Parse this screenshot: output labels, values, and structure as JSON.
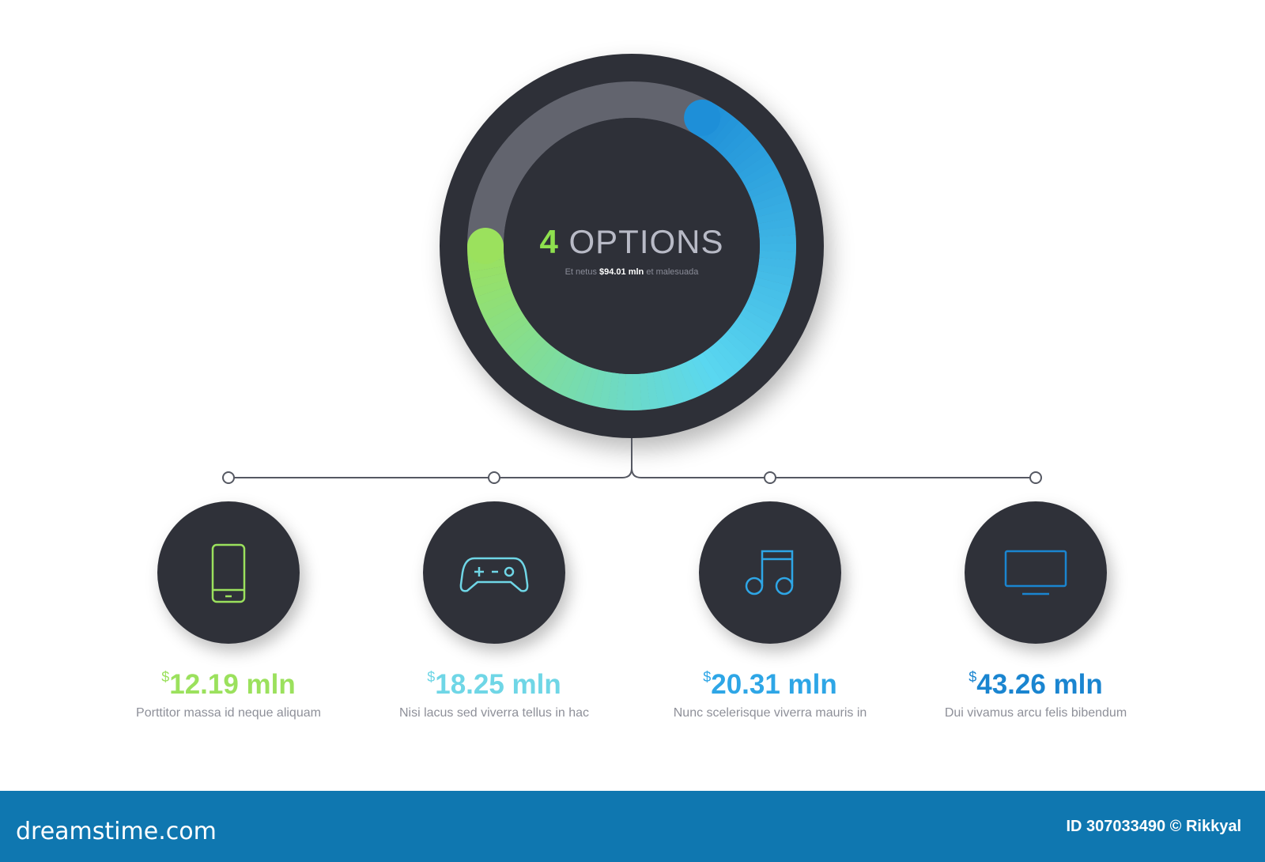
{
  "header": {
    "count": "4",
    "title": "OPTIONS",
    "subtitle_pre": "Et netus",
    "subtitle_value": "$94.01 mln",
    "subtitle_post": "et malesuada"
  },
  "ring": {
    "colored_fraction": 0.67,
    "gradient": [
      "#9be15d",
      "#5ad7f0",
      "#1e8fd8"
    ],
    "track_color": "#62646e"
  },
  "options": [
    {
      "icon": "smartphone-icon",
      "currency": "$",
      "value": "12.19 mln",
      "description": "Porttitor massa id neque aliquam",
      "color": "#9be15d"
    },
    {
      "icon": "gamepad-icon",
      "currency": "$",
      "value": "18.25 mln",
      "description": "Nisi lacus sed viverra tellus in hac",
      "color": "#6fd6e6"
    },
    {
      "icon": "music-note-icon",
      "currency": "$",
      "value": "20.31 mln",
      "description": "Nunc scelerisque viverra mauris in",
      "color": "#2ea6e6"
    },
    {
      "icon": "monitor-icon",
      "currency": "$",
      "value": "43.26 mln",
      "description": "Dui vivamus arcu felis bibendum",
      "color": "#1a85d0"
    }
  ],
  "footer": {
    "brand": "dreamstime.com",
    "credit": "ID 307033490 © Rikkyal"
  }
}
